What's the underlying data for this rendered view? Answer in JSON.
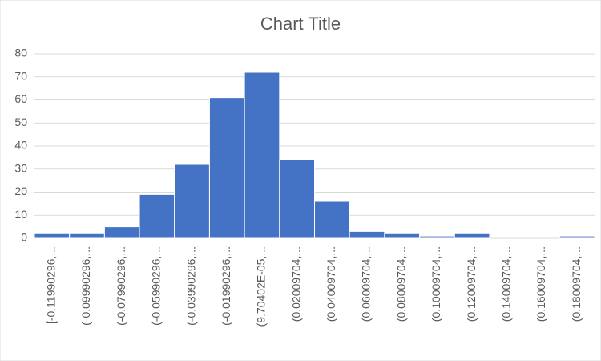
{
  "chart_data": {
    "type": "bar",
    "title": "Chart Title",
    "categories": [
      "[-0.11990296,...",
      "(-0.09990296,...",
      "(-0.07990296,...",
      "(-0.05990296,...",
      "(-0.03990296,...",
      "(-0.01990296,...",
      "(9.70402E-05,...",
      "(0.02009704,...",
      "(0.04009704,...",
      "(0.06009704,...",
      "(0.08009704,...",
      "(0.10009704,...",
      "(0.12009704,...",
      "(0.14009704,...",
      "(0.16009704,...",
      "(0.18009704,..."
    ],
    "values": [
      2,
      2,
      5,
      19,
      32,
      61,
      72,
      34,
      16,
      3,
      2,
      1,
      2,
      0,
      0,
      1
    ],
    "color": "#4472c4",
    "ylim": [
      0,
      80
    ],
    "yticks": [
      0,
      10,
      20,
      30,
      40,
      50,
      60,
      70,
      80
    ],
    "grid": true
  }
}
